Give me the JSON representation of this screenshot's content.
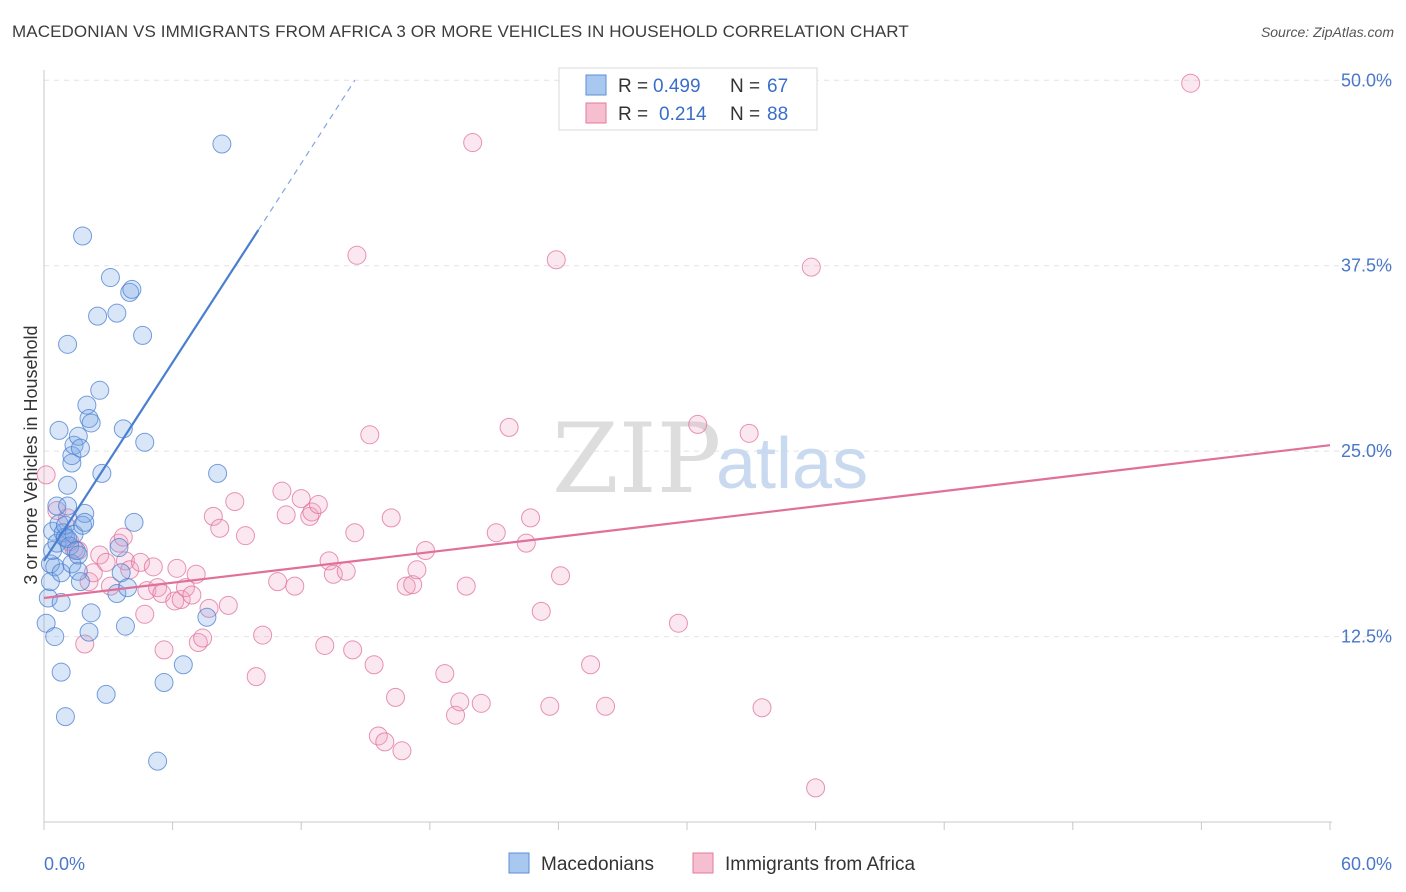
{
  "title": "MACEDONIAN VS IMMIGRANTS FROM AFRICA 3 OR MORE VEHICLES IN HOUSEHOLD CORRELATION CHART",
  "source": "Source: ZipAtlas.com",
  "watermark": {
    "zip": "ZIP",
    "atlas": "atlas"
  },
  "legend": {
    "r_label": "R =",
    "n_label": "N =",
    "rows": [
      {
        "series": "Macedonians",
        "r": "0.499",
        "n": "67",
        "color": "#a9c8ef",
        "stroke": "#5b8fd6"
      },
      {
        "series": "Immigrants from Africa",
        "r": "0.214",
        "n": "88",
        "color": "#f5bfd0",
        "stroke": "#e57aa0"
      }
    ]
  },
  "bottom_legend": [
    "Macedonians",
    "Immigrants from Africa"
  ],
  "colors": {
    "blue": "#4a7fd0",
    "blue_fill": "rgba(120,165,230,0.28)",
    "pink": "#e0709a",
    "pink_fill": "rgba(240,160,190,0.25)",
    "tick": "#4a78c8"
  },
  "chart_data": {
    "type": "scatter",
    "title": "MACEDONIAN VS IMMIGRANTS FROM AFRICA 3 OR MORE VEHICLES IN HOUSEHOLD CORRELATION CHART",
    "xlabel": "",
    "ylabel": "3 or more Vehicles in Household",
    "xlim": [
      0,
      60
    ],
    "ylim": [
      0,
      51.5
    ],
    "x_tick_labels": [
      "0.0%",
      "60.0%"
    ],
    "y_ticks": [
      12.5,
      25.0,
      37.5,
      50.0
    ],
    "y_tick_labels": [
      "12.5%",
      "25.0%",
      "37.5%",
      "50.0%"
    ],
    "grid": true,
    "series": [
      {
        "name": "Macedonians",
        "points": [
          [
            0.1,
            13.4
          ],
          [
            0.2,
            15.1
          ],
          [
            0.3,
            16.2
          ],
          [
            0.3,
            17.4
          ],
          [
            0.4,
            18.3
          ],
          [
            0.4,
            19.6
          ],
          [
            0.5,
            17.2
          ],
          [
            0.6,
            18.8
          ],
          [
            0.6,
            21.3
          ],
          [
            0.7,
            20.1
          ],
          [
            0.7,
            26.4
          ],
          [
            0.8,
            16.8
          ],
          [
            0.8,
            14.8
          ],
          [
            0.8,
            10.1
          ],
          [
            0.9,
            19.5
          ],
          [
            1.0,
            19.2
          ],
          [
            1.0,
            20.0
          ],
          [
            1.1,
            19.1
          ],
          [
            1.1,
            22.7
          ],
          [
            1.1,
            21.3
          ],
          [
            1.1,
            32.2
          ],
          [
            1.2,
            18.6
          ],
          [
            1.3,
            24.2
          ],
          [
            1.3,
            24.7
          ],
          [
            1.3,
            17.4
          ],
          [
            1.4,
            25.4
          ],
          [
            1.4,
            19.4
          ],
          [
            1.5,
            18.3
          ],
          [
            1.6,
            26.0
          ],
          [
            1.6,
            16.9
          ],
          [
            1.6,
            18.0
          ],
          [
            1.7,
            16.2
          ],
          [
            1.7,
            25.2
          ],
          [
            1.8,
            39.5
          ],
          [
            1.8,
            20.0
          ],
          [
            1.9,
            20.8
          ],
          [
            1.9,
            20.2
          ],
          [
            2.0,
            28.1
          ],
          [
            2.1,
            12.8
          ],
          [
            2.1,
            27.2
          ],
          [
            2.2,
            14.1
          ],
          [
            2.2,
            26.9
          ],
          [
            2.5,
            34.1
          ],
          [
            2.6,
            29.1
          ],
          [
            2.7,
            23.5
          ],
          [
            3.1,
            36.7
          ],
          [
            3.4,
            34.3
          ],
          [
            3.4,
            15.4
          ],
          [
            3.5,
            18.5
          ],
          [
            3.6,
            16.8
          ],
          [
            3.7,
            26.5
          ],
          [
            3.8,
            13.2
          ],
          [
            3.9,
            15.8
          ],
          [
            4.0,
            35.7
          ],
          [
            4.1,
            35.9
          ],
          [
            4.2,
            20.2
          ],
          [
            4.6,
            32.8
          ],
          [
            4.7,
            25.6
          ],
          [
            5.3,
            4.1
          ],
          [
            5.6,
            9.4
          ],
          [
            6.5,
            10.6
          ],
          [
            7.6,
            13.8
          ],
          [
            8.1,
            23.5
          ],
          [
            8.3,
            45.7
          ],
          [
            1.0,
            7.1
          ],
          [
            0.5,
            12.5
          ],
          [
            2.9,
            8.6
          ]
        ],
        "trend": {
          "x": [
            0,
            10
          ],
          "y": [
            17.6,
            39.9
          ]
        },
        "trend_extension": {
          "x": [
            10,
            14.5
          ],
          "y": [
            39.9,
            50.0
          ]
        }
      },
      {
        "name": "Immigrants from Africa",
        "points": [
          [
            0.1,
            23.4
          ],
          [
            0.6,
            21.0
          ],
          [
            1.2,
            18.9
          ],
          [
            1.4,
            18.4
          ],
          [
            1.6,
            18.3
          ],
          [
            1.9,
            12.0
          ],
          [
            2.1,
            16.2
          ],
          [
            2.3,
            16.8
          ],
          [
            2.6,
            18.0
          ],
          [
            2.9,
            17.5
          ],
          [
            3.1,
            15.9
          ],
          [
            3.5,
            18.8
          ],
          [
            3.7,
            19.2
          ],
          [
            3.8,
            17.6
          ],
          [
            4.0,
            17.0
          ],
          [
            4.5,
            17.5
          ],
          [
            4.7,
            14.0
          ],
          [
            4.8,
            15.6
          ],
          [
            5.1,
            17.2
          ],
          [
            5.3,
            15.8
          ],
          [
            5.5,
            15.4
          ],
          [
            5.6,
            11.6
          ],
          [
            6.1,
            14.9
          ],
          [
            6.2,
            17.1
          ],
          [
            6.4,
            15.0
          ],
          [
            6.6,
            15.8
          ],
          [
            6.9,
            15.3
          ],
          [
            7.1,
            16.7
          ],
          [
            7.2,
            12.1
          ],
          [
            7.4,
            12.4
          ],
          [
            7.7,
            14.4
          ],
          [
            7.9,
            20.6
          ],
          [
            8.2,
            19.8
          ],
          [
            8.6,
            14.6
          ],
          [
            8.9,
            21.6
          ],
          [
            9.4,
            19.3
          ],
          [
            9.9,
            9.8
          ],
          [
            10.2,
            12.6
          ],
          [
            10.9,
            16.2
          ],
          [
            11.1,
            22.3
          ],
          [
            11.3,
            20.7
          ],
          [
            11.7,
            15.9
          ],
          [
            12.0,
            21.8
          ],
          [
            12.4,
            20.6
          ],
          [
            12.5,
            20.9
          ],
          [
            12.8,
            21.4
          ],
          [
            13.1,
            11.9
          ],
          [
            13.3,
            17.6
          ],
          [
            13.5,
            16.7
          ],
          [
            14.1,
            16.9
          ],
          [
            14.4,
            11.6
          ],
          [
            14.5,
            19.5
          ],
          [
            14.6,
            38.2
          ],
          [
            15.2,
            26.1
          ],
          [
            15.4,
            10.6
          ],
          [
            15.6,
            5.8
          ],
          [
            15.9,
            5.4
          ],
          [
            16.2,
            20.5
          ],
          [
            16.4,
            8.4
          ],
          [
            16.7,
            4.8
          ],
          [
            16.9,
            15.9
          ],
          [
            17.2,
            16.0
          ],
          [
            17.4,
            17.0
          ],
          [
            17.8,
            18.3
          ],
          [
            18.7,
            10.0
          ],
          [
            19.2,
            7.2
          ],
          [
            19.4,
            8.1
          ],
          [
            19.7,
            15.9
          ],
          [
            20.0,
            45.8
          ],
          [
            20.4,
            8.0
          ],
          [
            21.1,
            19.5
          ],
          [
            21.7,
            26.6
          ],
          [
            22.5,
            18.8
          ],
          [
            22.7,
            20.5
          ],
          [
            23.2,
            14.2
          ],
          [
            23.6,
            7.8
          ],
          [
            23.9,
            37.9
          ],
          [
            24.1,
            16.6
          ],
          [
            25.5,
            10.6
          ],
          [
            26.2,
            7.8
          ],
          [
            29.6,
            13.4
          ],
          [
            30.5,
            26.8
          ],
          [
            32.9,
            26.2
          ],
          [
            33.5,
            7.7
          ],
          [
            35.8,
            37.4
          ],
          [
            36.0,
            2.3
          ],
          [
            53.5,
            49.8
          ],
          [
            1.1,
            20.5
          ]
        ],
        "trend": {
          "x": [
            0,
            60
          ],
          "y": [
            15.1,
            25.4
          ]
        }
      }
    ]
  }
}
